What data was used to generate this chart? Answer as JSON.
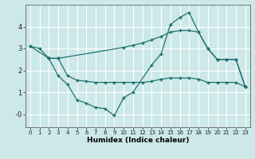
{
  "xlabel": "Humidex (Indice chaleur)",
  "bg_color": "#cce8e8",
  "grid_color": "#ffffff",
  "line_color": "#1a6b6b",
  "xlim": [
    -0.5,
    23.5
  ],
  "ylim": [
    -0.6,
    5.0
  ],
  "yticks": [
    0,
    1,
    2,
    3,
    4
  ],
  "ytick_labels": [
    "-0",
    "1",
    "2",
    "3",
    "4"
  ],
  "xtick_labels": [
    "0",
    "1",
    "2",
    "3",
    "4",
    "5",
    "6",
    "7",
    "8",
    "9",
    "10",
    "11",
    "12",
    "13",
    "14",
    "15",
    "16",
    "17",
    "18",
    "19",
    "20",
    "21",
    "22",
    "23"
  ],
  "line1_x": [
    0,
    1,
    2,
    3,
    10,
    11,
    12,
    13,
    14,
    15,
    16,
    17,
    18,
    19,
    20,
    21,
    22,
    23
  ],
  "line1_y": [
    3.1,
    3.0,
    2.55,
    2.55,
    3.05,
    3.15,
    3.25,
    3.4,
    3.55,
    3.75,
    3.82,
    3.82,
    3.75,
    3.0,
    2.5,
    2.5,
    2.5,
    1.25
  ],
  "line2_x": [
    0,
    2,
    3,
    4,
    5,
    6,
    7,
    8,
    9,
    10,
    11,
    13,
    14,
    15,
    16,
    17,
    18,
    19,
    20,
    21,
    22,
    23
  ],
  "line2_y": [
    3.1,
    2.55,
    1.75,
    1.35,
    0.65,
    0.5,
    0.3,
    0.25,
    -0.07,
    0.75,
    1.0,
    2.25,
    2.75,
    4.1,
    4.42,
    4.65,
    3.75,
    3.0,
    2.5,
    2.5,
    2.5,
    1.25
  ],
  "line3_x": [
    2,
    3,
    4,
    5,
    6,
    7,
    8,
    9,
    10,
    11,
    12,
    13,
    14,
    15,
    16,
    17,
    18,
    19,
    20,
    21,
    22,
    23
  ],
  "line3_y": [
    2.55,
    2.55,
    1.75,
    1.55,
    1.5,
    1.45,
    1.45,
    1.45,
    1.45,
    1.45,
    1.45,
    1.5,
    1.6,
    1.65,
    1.65,
    1.65,
    1.6,
    1.45,
    1.45,
    1.45,
    1.45,
    1.25
  ]
}
